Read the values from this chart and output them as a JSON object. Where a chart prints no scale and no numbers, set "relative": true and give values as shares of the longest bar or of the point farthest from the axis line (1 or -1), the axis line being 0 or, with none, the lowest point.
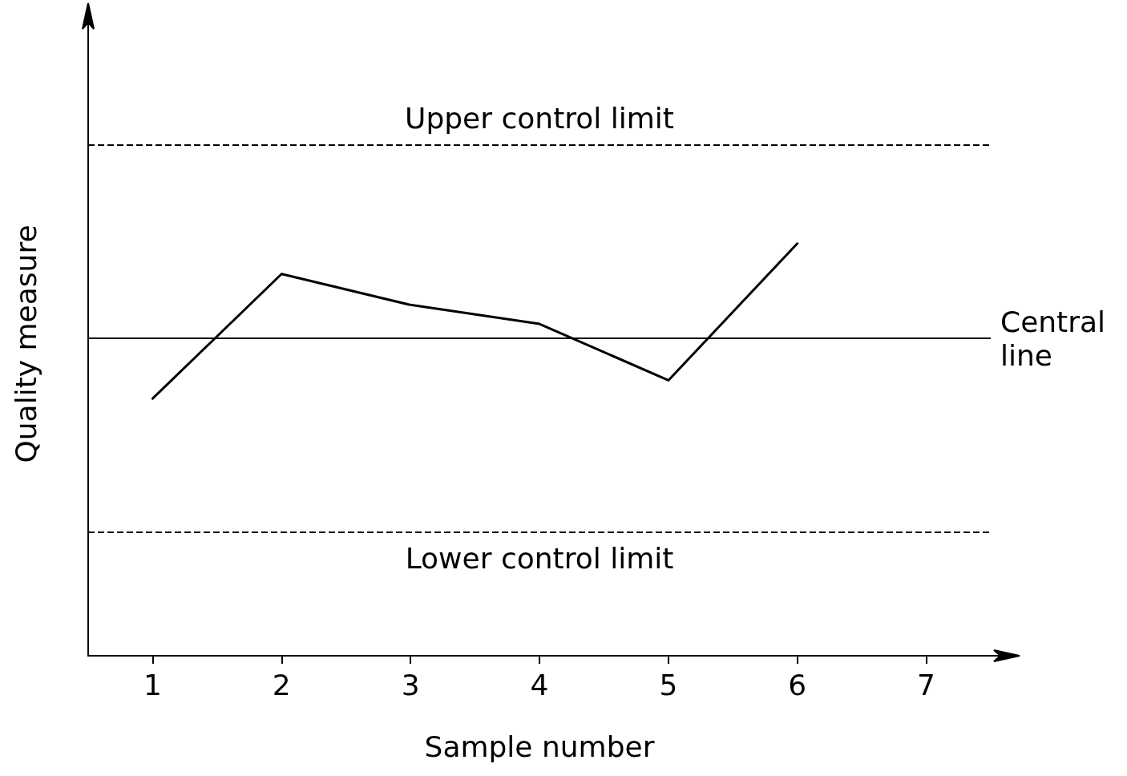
{
  "chart_data": {
    "type": "line",
    "relative": true,
    "xlabel": "Sample number",
    "ylabel": "Quality measure",
    "categories": [
      "1",
      "2",
      "3",
      "4",
      "5",
      "6",
      "7"
    ],
    "values": [
      0.624,
      0.926,
      0.851,
      0.805,
      0.668,
      1.0,
      null
    ],
    "color": "#000000",
    "marker": "none",
    "line_style": "solid",
    "grid": false,
    "ref_lines": [
      {
        "axis": "y",
        "value": 1.24,
        "label": "Upper control limit",
        "line_style": "dashed",
        "color": "#000000"
      },
      {
        "axis": "y",
        "value": 0.771,
        "label": "Central line",
        "line_style": "solid",
        "color": "#000000"
      },
      {
        "axis": "y",
        "value": 0.3,
        "label": "Lower control limit",
        "line_style": "dashed",
        "color": "#000000"
      }
    ]
  }
}
